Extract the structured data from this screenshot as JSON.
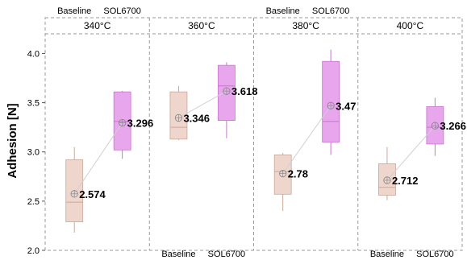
{
  "chart_data": {
    "type": "box",
    "ylabel": "Adhesion [N]",
    "ylim": [
      2.0,
      4.2
    ],
    "yticks": [
      2.0,
      2.5,
      3.0,
      3.5,
      4.0
    ],
    "ytick_labels": [
      "2.0",
      "2.5",
      "3.0",
      "3.5",
      "4.0"
    ],
    "panels": [
      "340°C",
      "360°C",
      "380°C",
      "400°C"
    ],
    "categories": [
      "Baseline",
      "SOL6700"
    ],
    "category_label_positions": [
      "top",
      "bottom",
      "top",
      "bottom"
    ],
    "colors": {
      "Baseline": "#eed6cc",
      "SOL6700": "#e8a6ec",
      "baseline_edge": "#c9a89b",
      "sol_edge": "#c775cc",
      "mean_line": "#cfcfd6",
      "panel_border": "#9a9a9a"
    },
    "series": [
      {
        "name": "Baseline",
        "boxes": [
          {
            "whisker_low": 2.18,
            "q1": 2.29,
            "median": 2.49,
            "q3": 2.92,
            "whisker_high": 3.05,
            "mean": 2.574,
            "mean_label": "2.574"
          },
          {
            "whisker_low": 3.12,
            "q1": 3.13,
            "median": 3.25,
            "q3": 3.61,
            "whisker_high": 3.67,
            "mean": 3.346,
            "mean_label": "3.346"
          },
          {
            "whisker_low": 2.4,
            "q1": 2.57,
            "median": 2.8,
            "q3": 2.97,
            "whisker_high": 2.99,
            "mean": 2.78,
            "mean_label": "2.78"
          },
          {
            "whisker_low": 2.51,
            "q1": 2.56,
            "median": 2.64,
            "q3": 2.88,
            "whisker_high": 3.05,
            "mean": 2.712,
            "mean_label": "2.712"
          }
        ]
      },
      {
        "name": "SOL6700",
        "boxes": [
          {
            "whisker_low": 2.93,
            "q1": 3.02,
            "median": 3.31,
            "q3": 3.61,
            "whisker_high": 3.62,
            "mean": 3.296,
            "mean_label": "3.296"
          },
          {
            "whisker_low": 3.14,
            "q1": 3.32,
            "median": 3.67,
            "q3": 3.88,
            "whisker_high": 3.91,
            "mean": 3.618,
            "mean_label": "3.618"
          },
          {
            "whisker_low": 2.97,
            "q1": 3.1,
            "median": 3.31,
            "q3": 3.92,
            "whisker_high": 4.04,
            "mean": 3.47,
            "mean_label": "3.47"
          },
          {
            "whisker_low": 2.96,
            "q1": 3.08,
            "median": 3.25,
            "q3": 3.46,
            "whisker_high": 3.55,
            "mean": 3.266,
            "mean_label": "3.266"
          }
        ]
      }
    ]
  }
}
